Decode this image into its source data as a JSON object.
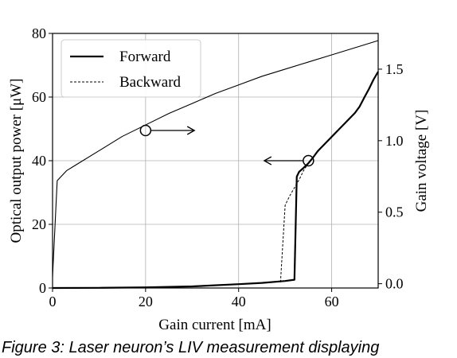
{
  "chart_data": {
    "type": "line",
    "xlabel": "Gain current [mA]",
    "ylabel": "Optical output power [μW]",
    "y2label": "Gain voltage [V]",
    "xlim": [
      0,
      70
    ],
    "ylim": [
      0,
      80
    ],
    "y2lim": [
      -0.03,
      1.75
    ],
    "x_ticks": [
      0,
      20,
      40,
      60
    ],
    "y_ticks": [
      0,
      20,
      40,
      60,
      80
    ],
    "y2_ticks": [
      0.0,
      0.5,
      1.0,
      1.5
    ],
    "x_tick_labels": [
      "0",
      "20",
      "40",
      "60"
    ],
    "y_tick_labels": [
      "0",
      "20",
      "40",
      "60",
      "80"
    ],
    "y2_tick_labels": [
      "0.0",
      "0.5",
      "1.0",
      "1.5"
    ],
    "grid": true,
    "legend_position": "top-left",
    "series": [
      {
        "name": "Forward",
        "axis": "left",
        "style": "solid",
        "x": [
          0,
          10,
          20,
          30,
          40,
          45,
          50,
          52,
          52.5,
          53,
          54,
          55,
          56,
          57,
          58,
          60,
          62,
          64,
          65,
          66,
          67,
          68,
          69,
          70
        ],
        "y": [
          0,
          0.05,
          0.2,
          0.5,
          1.2,
          1.6,
          2.2,
          2.6,
          35,
          36.5,
          37.8,
          39.2,
          41,
          43,
          44.5,
          47.5,
          50.5,
          53.5,
          55,
          57,
          59.8,
          62.5,
          65.5,
          68
        ]
      },
      {
        "name": "Backward",
        "axis": "left",
        "style": "dashed",
        "x": [
          49,
          50,
          51,
          52,
          53,
          54,
          55,
          56,
          58,
          60,
          62,
          64,
          66,
          68,
          70
        ],
        "y": [
          1.8,
          26,
          29,
          31.5,
          34,
          37,
          39.2,
          41,
          44.5,
          47.5,
          50.5,
          53.5,
          57,
          62.5,
          68
        ]
      },
      {
        "name": "",
        "axis": "right",
        "style": "solid-thin",
        "x": [
          0,
          1,
          3,
          5,
          10,
          15,
          20,
          25,
          30,
          35,
          40,
          45,
          50,
          55,
          60,
          65,
          70
        ],
        "y": [
          0.05,
          0.72,
          0.79,
          0.83,
          0.93,
          1.03,
          1.11,
          1.19,
          1.26,
          1.33,
          1.39,
          1.45,
          1.5,
          1.55,
          1.6,
          1.65,
          1.7
        ]
      }
    ],
    "annotations": [
      {
        "marker": "circle",
        "x": 20,
        "y": 49.5,
        "axis": "left",
        "arrow": "right",
        "arrow_to_x": 30.5
      },
      {
        "marker": "circle",
        "x": 55,
        "y": 40,
        "axis": "left",
        "arrow": "left",
        "arrow_to_x": 45.5
      }
    ],
    "caption": "Figure 3: Laser neuron’s LIV measurement displaying"
  },
  "colors": {
    "line": "#000000",
    "grid": "#b0b0b0",
    "background": "#ffffff"
  }
}
